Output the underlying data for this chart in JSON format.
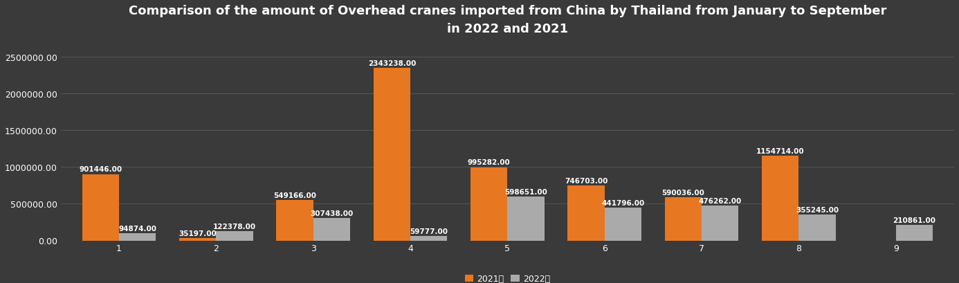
{
  "title": "Comparison of the amount of Overhead cranes imported from China by Thailand from January to September\nin 2022 and 2021",
  "months": [
    1,
    2,
    3,
    4,
    5,
    6,
    7,
    8,
    9
  ],
  "values_2021": [
    901446,
    35197,
    549166,
    2343238,
    995282,
    746703,
    590036,
    1154714,
    0
  ],
  "values_2022": [
    94874,
    122378,
    307438,
    59777,
    598651,
    441796,
    476262,
    355245,
    210861
  ],
  "color_2021": "#E87722",
  "color_2022": "#AAAAAA",
  "background_color": "#3a3a3a",
  "plot_bg_color": "#3a3a3a",
  "text_color": "#ffffff",
  "grid_color": "#555555",
  "ylim": [
    0,
    2700000
  ],
  "yticks": [
    0,
    500000,
    1000000,
    1500000,
    2000000,
    2500000
  ],
  "legend_2021": "2021年",
  "legend_2022": "2022年",
  "bar_width": 0.38,
  "title_fontsize": 13,
  "label_fontsize": 7.5,
  "tick_fontsize": 9,
  "legend_fontsize": 9
}
